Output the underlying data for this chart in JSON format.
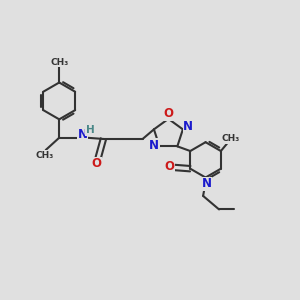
{
  "bg_color": "#e0e0e0",
  "bond_color": "#333333",
  "bond_width": 1.5,
  "n_color": "#1a1acc",
  "o_color": "#cc1a1a",
  "h_color": "#4a8888",
  "font_size": 8.0,
  "fig_width": 3.0,
  "fig_height": 3.0,
  "dpi": 100,
  "xlim": [
    0,
    12
  ],
  "ylim": [
    0,
    12
  ]
}
